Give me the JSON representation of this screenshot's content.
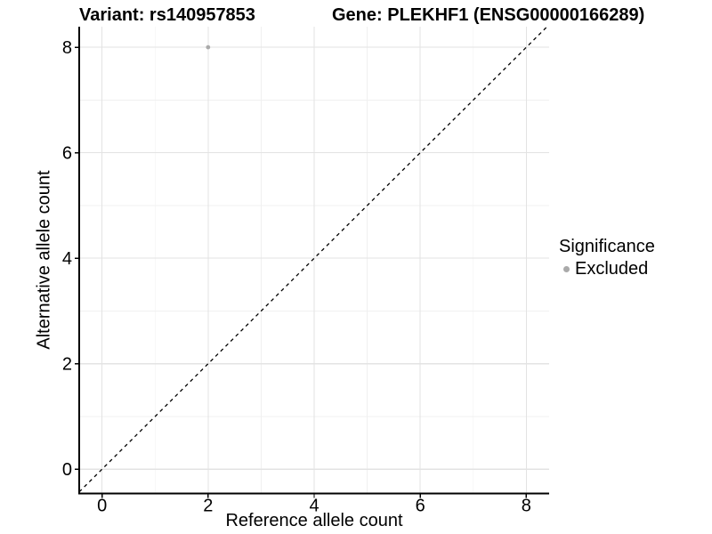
{
  "chart_data": {
    "type": "scatter",
    "title_left": "Variant: rs140957853",
    "title_right": "Gene: PLEKHF1 (ENSG00000166289)",
    "xlabel": "Reference allele count",
    "ylabel": "Alternative allele count",
    "xlim": [
      -0.43,
      8.43
    ],
    "ylim": [
      -0.46,
      8.39
    ],
    "xticks": [
      0,
      2,
      4,
      6,
      8
    ],
    "yticks": [
      0,
      2,
      4,
      6,
      8
    ],
    "minor_xticks": [
      1,
      3,
      5,
      7
    ],
    "minor_yticks": [
      1,
      3,
      5,
      7
    ],
    "grid": "on",
    "points": [
      {
        "x": 2,
        "y": 8,
        "significance": "Excluded"
      }
    ],
    "reference_line": {
      "kind": "identity",
      "equation": "y = x",
      "style": "dashed",
      "color": "#000000"
    },
    "legend": {
      "title": "Significance",
      "position": "right",
      "entries": [
        {
          "label": "Excluded",
          "color": "#aaaaaa"
        }
      ]
    },
    "colors": {
      "excluded_point": "#aaaaaa",
      "grid_major": "#e3e3e3",
      "grid_minor": "#f0f0f0",
      "axis": "#000000",
      "background": "#ffffff"
    }
  }
}
